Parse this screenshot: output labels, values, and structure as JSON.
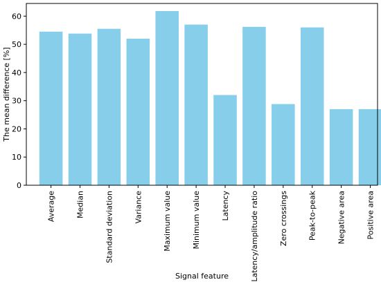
{
  "chart_data": {
    "type": "bar",
    "categories": [
      "Average",
      "Median",
      "Standard deviation",
      "Variance",
      "Maximum value",
      "Minimum value",
      "Latency",
      "Latency/amplitude ratio",
      "Zero crossings",
      "Peak-to-peak",
      "Negative area",
      "Positive area"
    ],
    "values": [
      54.5,
      53.8,
      55.5,
      52.0,
      61.8,
      57.0,
      32.0,
      56.2,
      28.8,
      56.0,
      27.0,
      27.0
    ],
    "xlabel": "Signal feature",
    "ylabel": "The mean difference [%]",
    "ylim": [
      0,
      64.5
    ],
    "yticks": [
      0,
      10,
      20,
      30,
      40,
      50,
      60
    ],
    "bar_color": "#87CEEB",
    "grid": false,
    "legend": "none"
  }
}
